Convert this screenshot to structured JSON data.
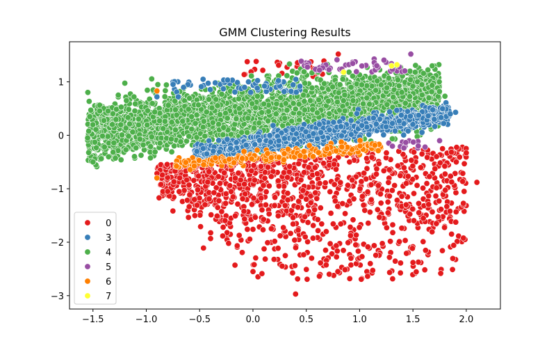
{
  "chart_data": {
    "type": "scatter",
    "title": "GMM Clustering Results",
    "xlabel": "",
    "ylabel": "",
    "xlim": [
      -1.72,
      2.32
    ],
    "ylim": [
      -3.25,
      1.75
    ],
    "xticks": [
      -1.5,
      -1.0,
      -0.5,
      0.0,
      0.5,
      1.0,
      1.5,
      2.0
    ],
    "xtick_labels": [
      "−1.5",
      "−1.0",
      "−0.5",
      "0.0",
      "0.5",
      "1.0",
      "1.5",
      "2.0"
    ],
    "yticks": [
      1,
      0,
      -1,
      -2,
      -3
    ],
    "ytick_labels": [
      "1",
      "0",
      "−1",
      "−2",
      "−3"
    ],
    "grid": false,
    "legend_position": "lower-left",
    "series": [
      {
        "name": "0",
        "color": "#e41a1c",
        "region": "lower band y from -3 to -0.4, x from -0.9 to 2.1, plus sparse points near top edge",
        "sample_points": [
          [
            0.4,
            -2.97
          ],
          [
            2.1,
            -0.88
          ],
          [
            1.98,
            -1.05
          ],
          [
            2.0,
            -0.33
          ],
          [
            -0.8,
            -1.05
          ],
          [
            0.0,
            -2.55
          ],
          [
            0.55,
            -2.3
          ],
          [
            1.1,
            -2.4
          ],
          [
            1.5,
            -2.38
          ],
          [
            1.72,
            -1.65
          ],
          [
            0.8,
            1.52
          ],
          [
            0.25,
            1.35
          ]
        ]
      },
      {
        "name": "3",
        "color": "#377eb8",
        "region": "diagonal band from (-0.5,-0.4) to (1.9,0.45)",
        "sample_points": [
          [
            1.9,
            0.43
          ],
          [
            1.85,
            0.4
          ],
          [
            1.7,
            0.3
          ],
          [
            -0.9,
            0.72
          ],
          [
            -0.7,
            0.72
          ]
        ]
      },
      {
        "name": "4",
        "color": "#4daf4a",
        "region": "main dense cloud x from -1.6 to 1.8, y from -0.7 to 1.3",
        "sample_points": [
          [
            -1.55,
            -0.05
          ],
          [
            1.68,
            1.3
          ],
          [
            1.8,
            0.73
          ],
          [
            -1.5,
            -0.5
          ]
        ]
      },
      {
        "name": "5",
        "color": "#984ea3",
        "region": "top edge near y 1.2 to 1.5 and right near (1.5,-0.2)",
        "sample_points": [
          [
            1.48,
            1.52
          ],
          [
            1.75,
            -0.1
          ],
          [
            1.55,
            -0.2
          ]
        ]
      },
      {
        "name": "6",
        "color": "#ff7f00",
        "region": "thin band between red and blue, around y -0.3 to -0.6",
        "sample_points": [
          [
            -0.9,
            0.83
          ],
          [
            -0.9,
            -0.8
          ]
        ]
      },
      {
        "name": "7",
        "color": "#ffff33",
        "region": "very sparse near top",
        "sample_points": [
          [
            1.3,
            1.3
          ],
          [
            1.35,
            1.32
          ],
          [
            0.85,
            1.18
          ]
        ]
      }
    ]
  }
}
